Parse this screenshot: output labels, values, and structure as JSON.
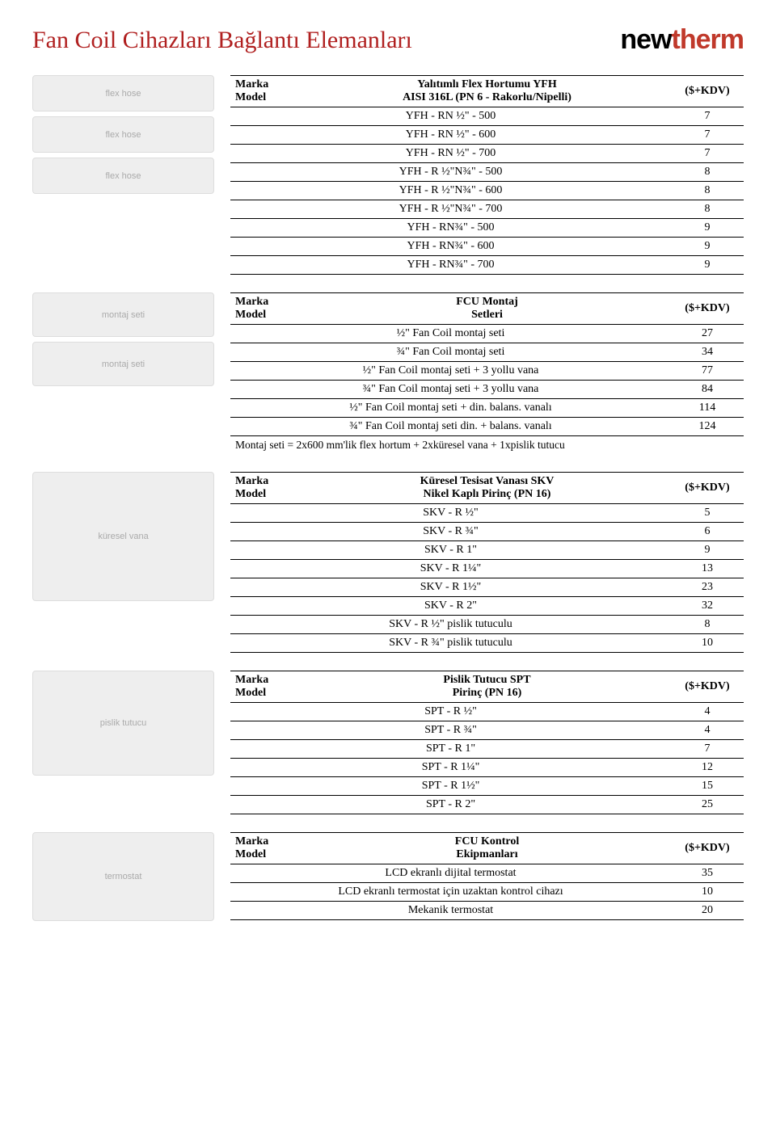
{
  "page_title": "Fan Coil Cihazları Bağlantı Elemanları",
  "brand": {
    "part1": "new",
    "part2": "therm"
  },
  "price_header": "($+KDV)",
  "col_marka": "Marka",
  "col_model": "Model",
  "tables": {
    "yfh": {
      "title_line1": "Yalıtımlı Flex Hortumu YFH",
      "title_line2": "AISI 316L (PN 6 - Rakorlu/Nipelli)",
      "rows": [
        {
          "label": "YFH - RN ½\" - 500",
          "price": "7"
        },
        {
          "label": "YFH - RN ½\" - 600",
          "price": "7"
        },
        {
          "label": "YFH - RN ½\" - 700",
          "price": "7"
        },
        {
          "label": "YFH - R ½\"N¾\" - 500",
          "price": "8"
        },
        {
          "label": "YFH - R ½\"N¾\" - 600",
          "price": "8"
        },
        {
          "label": "YFH - R ½\"N¾\" - 700",
          "price": "8"
        },
        {
          "label": "YFH - RN¾\" - 500",
          "price": "9"
        },
        {
          "label": "YFH - RN¾\" - 600",
          "price": "9"
        },
        {
          "label": "YFH - RN¾\" - 700",
          "price": "9"
        }
      ]
    },
    "fcu_montaj": {
      "title_line1": "FCU Montaj",
      "title_line2": "Setleri",
      "rows": [
        {
          "label": "½\" Fan Coil montaj seti",
          "price": "27"
        },
        {
          "label": "¾\" Fan Coil montaj seti",
          "price": "34"
        },
        {
          "label": "½\" Fan Coil montaj seti + 3 yollu vana",
          "price": "77"
        },
        {
          "label": "¾\" Fan Coil montaj seti + 3 yollu vana",
          "price": "84"
        },
        {
          "label": "½\" Fan Coil montaj seti + din. balans. vanalı",
          "price": "114"
        },
        {
          "label": "¾\" Fan Coil montaj seti din. + balans. vanalı",
          "price": "124"
        }
      ],
      "note": "Montaj seti = 2x600 mm'lik flex hortum + 2xküresel vana + 1xpislik tutucu"
    },
    "skv": {
      "title_line1": "Küresel Tesisat Vanası SKV",
      "title_line2": "Nikel Kaplı Pirinç (PN 16)",
      "rows": [
        {
          "label": "SKV - R ½\"",
          "price": "5"
        },
        {
          "label": "SKV - R ¾\"",
          "price": "6"
        },
        {
          "label": "SKV - R 1\"",
          "price": "9"
        },
        {
          "label": "SKV - R 1¼\"",
          "price": "13"
        },
        {
          "label": "SKV - R 1½\"",
          "price": "23"
        },
        {
          "label": "SKV - R 2\"",
          "price": "32"
        },
        {
          "label": "SKV - R ½\" pislik tutuculu",
          "price": "8"
        },
        {
          "label": "SKV - R ¾\" pislik tutuculu",
          "price": "10"
        }
      ]
    },
    "spt": {
      "title_line1": "Pislik Tutucu SPT",
      "title_line2": "Pirinç (PN 16)",
      "rows": [
        {
          "label": "SPT - R ½\"",
          "price": "4"
        },
        {
          "label": "SPT - R ¾\"",
          "price": "4"
        },
        {
          "label": "SPT - R 1\"",
          "price": "7"
        },
        {
          "label": "SPT - R 1¼\"",
          "price": "12"
        },
        {
          "label": "SPT - R 1½\"",
          "price": "15"
        },
        {
          "label": "SPT - R 2\"",
          "price": "25"
        }
      ]
    },
    "fcu_kontrol": {
      "title_line1": "FCU Kontrol",
      "title_line2": "Ekipmanları",
      "rows": [
        {
          "label": "LCD ekranlı dijital termostat",
          "price": "35"
        },
        {
          "label": "LCD ekranlı termostat için uzaktan kontrol cihazı",
          "price": "10"
        },
        {
          "label": "Mekanik termostat",
          "price": "20"
        }
      ]
    }
  },
  "styling": {
    "title_color": "#b02020",
    "brand_accent": "#c0392b",
    "border_color": "#000000",
    "background_color": "#ffffff",
    "title_fontsize": 30,
    "body_fontsize": 14
  }
}
